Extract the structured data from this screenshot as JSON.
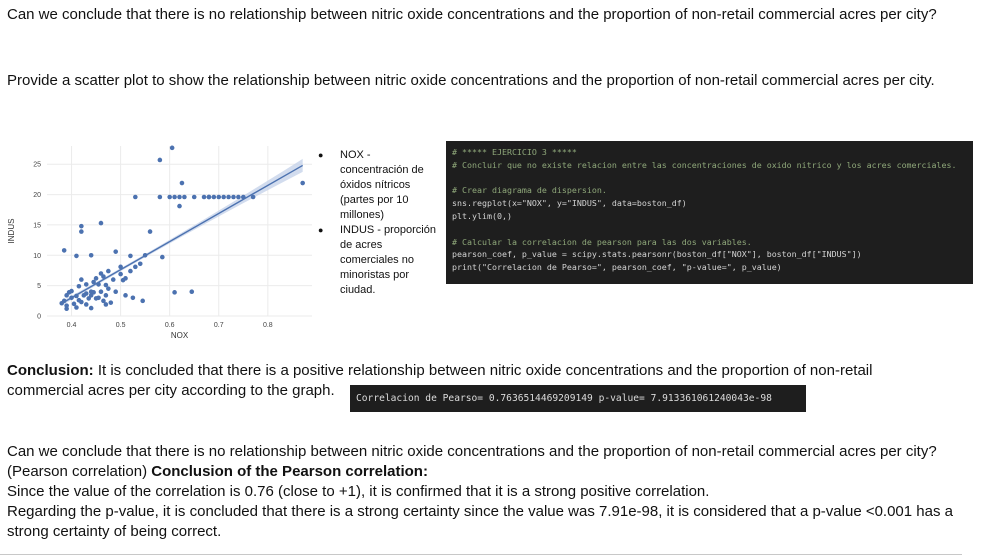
{
  "question_title": "Can we conclude that there is no relationship between nitric oxide concentrations and the proportion of non-retail commercial acres per city?",
  "task_text": "Provide a scatter plot to show the relationship between nitric oxide concentrations and the proportion of non-retail commercial acres per city.",
  "legend_notes": [
    "NOX - concentración de óxidos nítricos (partes por 10 millones)",
    "INDUS - proporción de acres comerciales no minoristas por ciudad."
  ],
  "code_lines": [
    {
      "kind": "comment",
      "text": "# ***** EJERCICIO 3 *****"
    },
    {
      "kind": "comment",
      "text": "# Concluir que no existe relacion entre las concentraciones de oxido nitrico y los acres comerciales."
    },
    {
      "kind": "blank",
      "text": ""
    },
    {
      "kind": "comment",
      "text": "# Crear diagrama de dispersion."
    },
    {
      "kind": "code",
      "text": "sns.regplot(x=\"NOX\", y=\"INDUS\", data=boston_df)"
    },
    {
      "kind": "code",
      "text": "plt.ylim(0,)"
    },
    {
      "kind": "blank",
      "text": ""
    },
    {
      "kind": "comment",
      "text": "# Calcular la correlacion de pearson para las dos variables."
    },
    {
      "kind": "code",
      "text": "pearson_coef, p_value = scipy.stats.pearsonr(boston_df[\"NOX\"], boston_df[\"INDUS\"])"
    },
    {
      "kind": "code",
      "text": "print(\"Correlacion de Pearso=\", pearson_coef, \"p-value=\", p_value)"
    }
  ],
  "conclusion_label": "Conclusion:",
  "conclusion_text": " It is concluded that there is a positive relationship between nitric oxide concentrations and the proportion of non-retail commercial acres per city according to the graph.",
  "output_text": "Correlacion de Pearso= 0.7636514469209149 p-value= 7.913361061240043e-98",
  "bottom_question": "Can we conclude that there is no relationship between nitric oxide concentrations and the proportion of non-retail commercial acres per city? (Pearson correlation) ",
  "bottom_label": "Conclusion of the Pearson correlation:",
  "bottom_line1": "Since the value of the correlation is 0.76 (close to +1), it is confirmed that it is a strong positive correlation.",
  "bottom_line2": "Regarding the p-value, it is concluded that there is a strong certainty since the value was 7.91e-98, it is considered that a p-value <0.001 has a strong certainty of being correct.",
  "cut_off_text": "",
  "colors": {
    "point": "#4c72b0",
    "ci_band": "#c7d3ea",
    "grid": "#ebebeb",
    "code_bg": "#1e1e1e",
    "comment": "#8fa87a"
  },
  "chart_data": {
    "type": "scatter",
    "xlabel": "NOX",
    "ylabel": "INDUS",
    "xlim": [
      0.35,
      0.89
    ],
    "ylim": [
      0,
      28
    ],
    "xticks": [
      "0.4",
      "0.5",
      "0.6",
      "0.7",
      "0.8"
    ],
    "yticks": [
      "0",
      "5",
      "10",
      "15",
      "20",
      "25"
    ],
    "grid": true,
    "regression": {
      "x": [
        0.385,
        0.871
      ],
      "y": [
        2.3,
        24.8
      ]
    },
    "points": [
      [
        0.38,
        2.1
      ],
      [
        0.385,
        2.5
      ],
      [
        0.39,
        3.4
      ],
      [
        0.39,
        1.7
      ],
      [
        0.395,
        3.9
      ],
      [
        0.4,
        3.0
      ],
      [
        0.4,
        4.1
      ],
      [
        0.405,
        2.0
      ],
      [
        0.41,
        3.3
      ],
      [
        0.41,
        1.4
      ],
      [
        0.415,
        4.9
      ],
      [
        0.42,
        2.3
      ],
      [
        0.42,
        6.0
      ],
      [
        0.425,
        3.4
      ],
      [
        0.43,
        5.2
      ],
      [
        0.43,
        1.9
      ],
      [
        0.435,
        2.9
      ],
      [
        0.44,
        4.0
      ],
      [
        0.44,
        3.4
      ],
      [
        0.445,
        5.6
      ],
      [
        0.45,
        2.9
      ],
      [
        0.45,
        6.2
      ],
      [
        0.455,
        3.0
      ],
      [
        0.46,
        4.0
      ],
      [
        0.46,
        7.0
      ],
      [
        0.465,
        2.5
      ],
      [
        0.47,
        3.4
      ],
      [
        0.47,
        5.1
      ],
      [
        0.475,
        7.4
      ],
      [
        0.48,
        2.2
      ],
      [
        0.49,
        4.0
      ],
      [
        0.5,
        6.9
      ],
      [
        0.5,
        8.1
      ],
      [
        0.505,
        5.9
      ],
      [
        0.51,
        6.2
      ],
      [
        0.51,
        3.4
      ],
      [
        0.52,
        9.9
      ],
      [
        0.52,
        7.4
      ],
      [
        0.525,
        3.0
      ],
      [
        0.53,
        8.1
      ],
      [
        0.54,
        8.6
      ],
      [
        0.545,
        2.5
      ],
      [
        0.55,
        10.0
      ],
      [
        0.56,
        13.9
      ],
      [
        0.585,
        9.7
      ],
      [
        0.61,
        3.9
      ],
      [
        0.62,
        18.1
      ],
      [
        0.645,
        4.0
      ],
      [
        0.385,
        10.8
      ],
      [
        0.42,
        13.9
      ],
      [
        0.42,
        14.8
      ],
      [
        0.46,
        15.3
      ],
      [
        0.49,
        10.6
      ],
      [
        0.44,
        10.0
      ],
      [
        0.41,
        9.9
      ],
      [
        0.53,
        19.6
      ],
      [
        0.58,
        19.6
      ],
      [
        0.6,
        19.6
      ],
      [
        0.61,
        19.6
      ],
      [
        0.62,
        19.6
      ],
      [
        0.63,
        19.6
      ],
      [
        0.65,
        19.6
      ],
      [
        0.67,
        19.6
      ],
      [
        0.68,
        19.6
      ],
      [
        0.69,
        19.6
      ],
      [
        0.7,
        19.6
      ],
      [
        0.71,
        19.6
      ],
      [
        0.73,
        19.6
      ],
      [
        0.74,
        19.6
      ],
      [
        0.77,
        19.6
      ],
      [
        0.68,
        19.6
      ],
      [
        0.72,
        19.6
      ],
      [
        0.75,
        19.6
      ],
      [
        0.58,
        25.7
      ],
      [
        0.605,
        27.7
      ],
      [
        0.625,
        21.9
      ],
      [
        0.871,
        21.9
      ],
      [
        0.445,
        3.9
      ],
      [
        0.455,
        5.2
      ],
      [
        0.465,
        6.5
      ],
      [
        0.475,
        4.5
      ],
      [
        0.485,
        6.0
      ],
      [
        0.415,
        2.6
      ],
      [
        0.44,
        1.3
      ],
      [
        0.47,
        1.9
      ],
      [
        0.39,
        1.2
      ],
      [
        0.43,
        3.7
      ]
    ]
  }
}
